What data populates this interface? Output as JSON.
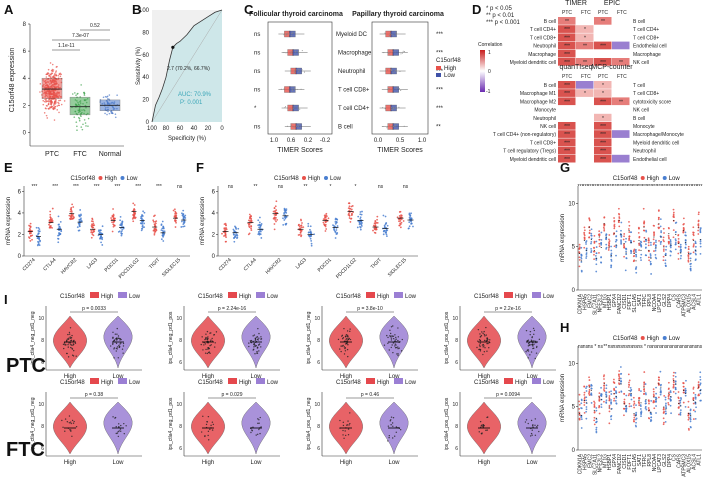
{
  "figure_id": "composite-figure",
  "panels": {
    "A": {
      "label": "A",
      "ylabel": "C15orf48 expression",
      "pvals": [
        "1.1e-11",
        "7.3e-07",
        "0.52"
      ],
      "chart_data": {
        "type": "boxplot",
        "categories": [
          "PTC",
          "FTC",
          "Normal"
        ],
        "medians": [
          3.2,
          1.9,
          2.0
        ],
        "q1": [
          2.5,
          1.3,
          1.6
        ],
        "q3": [
          4.0,
          2.6,
          2.4
        ],
        "ylim": [
          -1,
          8
        ],
        "yticks": [
          0,
          2,
          4,
          6,
          8
        ],
        "colors": [
          "#e8514a",
          "#3fa34d",
          "#4a78c9"
        ]
      }
    },
    "B": {
      "label": "B",
      "xlabel": "Specificity (%)",
      "ylabel": "Sensitivity (%)",
      "cutoff": "2.7 (70.2%, 66.7%)",
      "auc": "AUC: 70.9%",
      "p": "P: 0.001",
      "chart_data": {
        "type": "line",
        "x_ticks": [
          100,
          80,
          60,
          40,
          20,
          0
        ],
        "y_ticks": [
          0,
          20,
          40,
          60,
          80,
          100
        ],
        "specificity": [
          100,
          95,
          90,
          85,
          80,
          75,
          70.2,
          65,
          60,
          55,
          50,
          45,
          40,
          30,
          20,
          10,
          0
        ],
        "sensitivity": [
          0,
          15,
          22,
          30,
          40,
          55,
          66.7,
          70,
          72,
          75,
          78,
          82,
          86,
          90,
          94,
          98,
          100
        ]
      }
    },
    "C": {
      "label": "C",
      "left_title": "Follicular thyroid carcinoma",
      "right_title": "Papillary thyroid carcinoma",
      "xlabel": "TIMER Scores",
      "cells": [
        "Myeloid DC",
        "Macrophage",
        "Neutrophil",
        "T cell CD8+",
        "T cell CD4+",
        "B cell"
      ],
      "left_sig": [
        "ns",
        "ns",
        "ns",
        "ns",
        "*",
        "ns"
      ],
      "right_sig": [
        "***",
        "***",
        "***",
        "***",
        "***",
        "**"
      ],
      "left_ticks": [
        "1.0",
        "0.6",
        "0.2",
        "-0.2"
      ],
      "right_ticks": [
        "0.0",
        "0.5",
        "1.0"
      ],
      "legend_title": "C15orf48",
      "legend": [
        "High",
        "Low"
      ]
    },
    "D": {
      "label": "D",
      "legend_note": [
        "* p < 0.05",
        "** p < 0.01",
        "*** p < 0.001"
      ],
      "corr_title": "Correlation",
      "corr_ticks": [
        "1",
        "0",
        "-1"
      ],
      "timer": {
        "title": "TIMER",
        "cols": [
          "PTC",
          "FTC"
        ],
        "rows": [
          "B cell",
          "T cell CD4+",
          "T cell CD8+",
          "Neutrophil",
          "Macrophage",
          "Myeloid dendritic cell"
        ],
        "sig": [
          [
            "**",
            ""
          ],
          [
            "***",
            "*"
          ],
          [
            "***",
            "*"
          ],
          [
            "***",
            "**"
          ],
          [
            "***",
            ""
          ],
          [
            "***",
            "**"
          ]
        ]
      },
      "epic": {
        "title": "EPIC",
        "cols": [
          "PTC",
          "FTC"
        ],
        "rows": [
          "B cell",
          "T cell CD4+",
          "T cell CD8+",
          "Endothelial cell",
          "Macrophage",
          "NK cell"
        ],
        "sig": [
          [
            "**",
            ""
          ],
          [
            "",
            ""
          ],
          [
            "",
            ""
          ],
          [
            "***",
            ""
          ],
          [
            "",
            ""
          ],
          [
            "***",
            "**"
          ]
        ]
      },
      "quantiseq": {
        "title": "quanTIseq",
        "cols": [
          "PTC",
          "FTC"
        ],
        "rows": [
          "B cell",
          "Macrophage M1",
          "Macrophage M2",
          "Monocyte",
          "Neutrophil",
          "NK cell",
          "T cell CD4+ (non-regulatory)",
          "T cell CD8+",
          "T cell regulatory (Tregs)",
          "Myeloid dendritic cell"
        ],
        "sig": [
          [
            "***",
            ""
          ],
          [
            "***",
            "*"
          ],
          [
            "***",
            ""
          ],
          [
            "",
            ""
          ],
          [
            "",
            ""
          ],
          [
            "***",
            ""
          ],
          [
            "***",
            ""
          ],
          [
            "***",
            ""
          ],
          [
            "***",
            ""
          ],
          [
            "***",
            ""
          ]
        ]
      },
      "mcp": {
        "title": "MCP-counter",
        "cols": [
          "PTC",
          "FTC"
        ],
        "rows": [
          "T cell",
          "T cell CD8+",
          "cytotoxicity score",
          "NK cell",
          "B cell",
          "Monocyte",
          "Macrophage/Monocyte",
          "Myeloid dendritic cell",
          "Neutrophil",
          "Endothelial cell"
        ],
        "sig": [
          [
            "*",
            ""
          ],
          [
            "*",
            ""
          ],
          [
            "***",
            "**"
          ],
          [
            "",
            ""
          ],
          [
            "*",
            ""
          ],
          [
            "***",
            ""
          ],
          [
            "***",
            ""
          ],
          [
            "***",
            ""
          ],
          [
            "***",
            ""
          ],
          [
            "***",
            ""
          ]
        ]
      }
    },
    "E": {
      "label": "E",
      "legend_title": "C15orf48",
      "legend": [
        "High",
        "Low"
      ],
      "ylabel": "mRNA expression",
      "genes": [
        "CD274",
        "CTLA4",
        "HAVCR2",
        "LAG3",
        "PDCD1",
        "PDCD1LG2",
        "TIGIT",
        "SIGLEC15"
      ],
      "sig": [
        "***",
        "***",
        "***",
        "***",
        "***",
        "***",
        "***",
        "ns"
      ],
      "yticks": [
        "0",
        "2",
        "4",
        "6"
      ]
    },
    "F": {
      "label": "F",
      "legend_title": "C15orf48",
      "legend": [
        "High",
        "Low"
      ],
      "ylabel": "mRNA expression",
      "genes": [
        "CD274",
        "CTLA4",
        "HAVCR2",
        "LAG3",
        "PDCD1",
        "PDCD1LG2",
        "TIGIT",
        "SIGLEC15"
      ],
      "sig": [
        "ns",
        "**",
        "ns",
        "**",
        "*",
        "*",
        "ns",
        "ns"
      ],
      "yticks": [
        "0",
        "2",
        "4",
        "6"
      ]
    },
    "G": {
      "label": "G",
      "legend_title": "C15orf48",
      "legend": [
        "High",
        "Low"
      ],
      "ylabel": "mRNA expression",
      "genes": [
        "CDKN1A",
        "HSPA5",
        "EMC2",
        "SLC7A11",
        "NFE2L2",
        "MT1G",
        "HSBP1",
        "GPX4",
        "FANCD2",
        "CISD1",
        "FDFT1",
        "SLC1A5",
        "SAT1",
        "TFRC",
        "RPL8",
        "NCOA4",
        "LPCAT3",
        "GLS2",
        "DPP4",
        "CS",
        "CARS",
        "ATP5MC3",
        "ALOX15",
        "ACSL4",
        "ATL1"
      ],
      "sig": [
        "***",
        "***",
        "***",
        "***",
        "***",
        "***",
        "***",
        "***",
        "***",
        "***",
        "***",
        "***",
        "***",
        "***",
        "***",
        "***",
        "***",
        "***",
        "***",
        "***",
        "***",
        "***",
        "***",
        "***",
        "***"
      ],
      "yticks": [
        "0",
        "5",
        "10"
      ]
    },
    "H": {
      "label": "H",
      "legend_title": "C15orf48",
      "legend": [
        "High",
        "Low"
      ],
      "ylabel": "mRNA expression",
      "genes": [
        "CDKN1A",
        "HSPA5",
        "EMC2",
        "SLC7A11",
        "NFE2L2",
        "MT1G",
        "HSBP1",
        "GPX4",
        "FANCD2",
        "CISD1",
        "FDFT1",
        "SLC1A5",
        "SAT1",
        "TFRC",
        "RPL8",
        "NCOA4",
        "LPCAT3",
        "GLS2",
        "DPP4",
        "CS",
        "CARS",
        "ATP5MC3",
        "ALOX15",
        "ACSL4",
        "ATL1"
      ],
      "sig": [
        "ns",
        "ns",
        "ns",
        "*",
        "ns",
        "**",
        "ns",
        "ns",
        "ns",
        "ns",
        "ns",
        "ns",
        "ns",
        "*",
        "ns",
        "ns",
        "ns",
        "ns",
        "ns",
        "ns",
        "ns",
        "ns",
        "ns",
        "ns",
        "ns"
      ],
      "yticks": [
        "0",
        "5",
        "10"
      ]
    },
    "I": {
      "label": "I",
      "row_labels": [
        "PTC",
        "FTC"
      ],
      "legend_title": "C15orf48",
      "legend": [
        "High",
        "Low"
      ],
      "xcats": [
        "High",
        "Low"
      ],
      "ptc": [
        {
          "ylabel": "ips_ctla4_neg_pd1_neg",
          "p": "p = 0.0033"
        },
        {
          "ylabel": "ips_ctla4_neg_pd1_pos",
          "p": "p = 2.24e-16"
        },
        {
          "ylabel": "ips_ctla4_pos_pd1_neg",
          "p": "p = 3.8e-10"
        },
        {
          "ylabel": "ips_ctla4_pos_pd1_pos",
          "p": "p = 2.2e-16"
        }
      ],
      "ftc": [
        {
          "ylabel": "ips_ctla4_neg_pd1_neg",
          "p": "p = 0.38"
        },
        {
          "ylabel": "ips_ctla4_neg_pd1_pos",
          "p": "p = 0.029"
        },
        {
          "ylabel": "ips_ctla4_pos_pd1_neg",
          "p": "p = 0.46"
        },
        {
          "ylabel": "ips_ctla4_pos_pd1_pos",
          "p": "p = 0.0094"
        }
      ]
    }
  },
  "colors": {
    "high": "#e8514a",
    "low": "#4a7fd0",
    "violin_high": "#e5484d",
    "violin_low": "#9b7fd4",
    "ptc": "#e8514a",
    "ftc": "#3fa34d",
    "normal": "#4a78c9"
  }
}
